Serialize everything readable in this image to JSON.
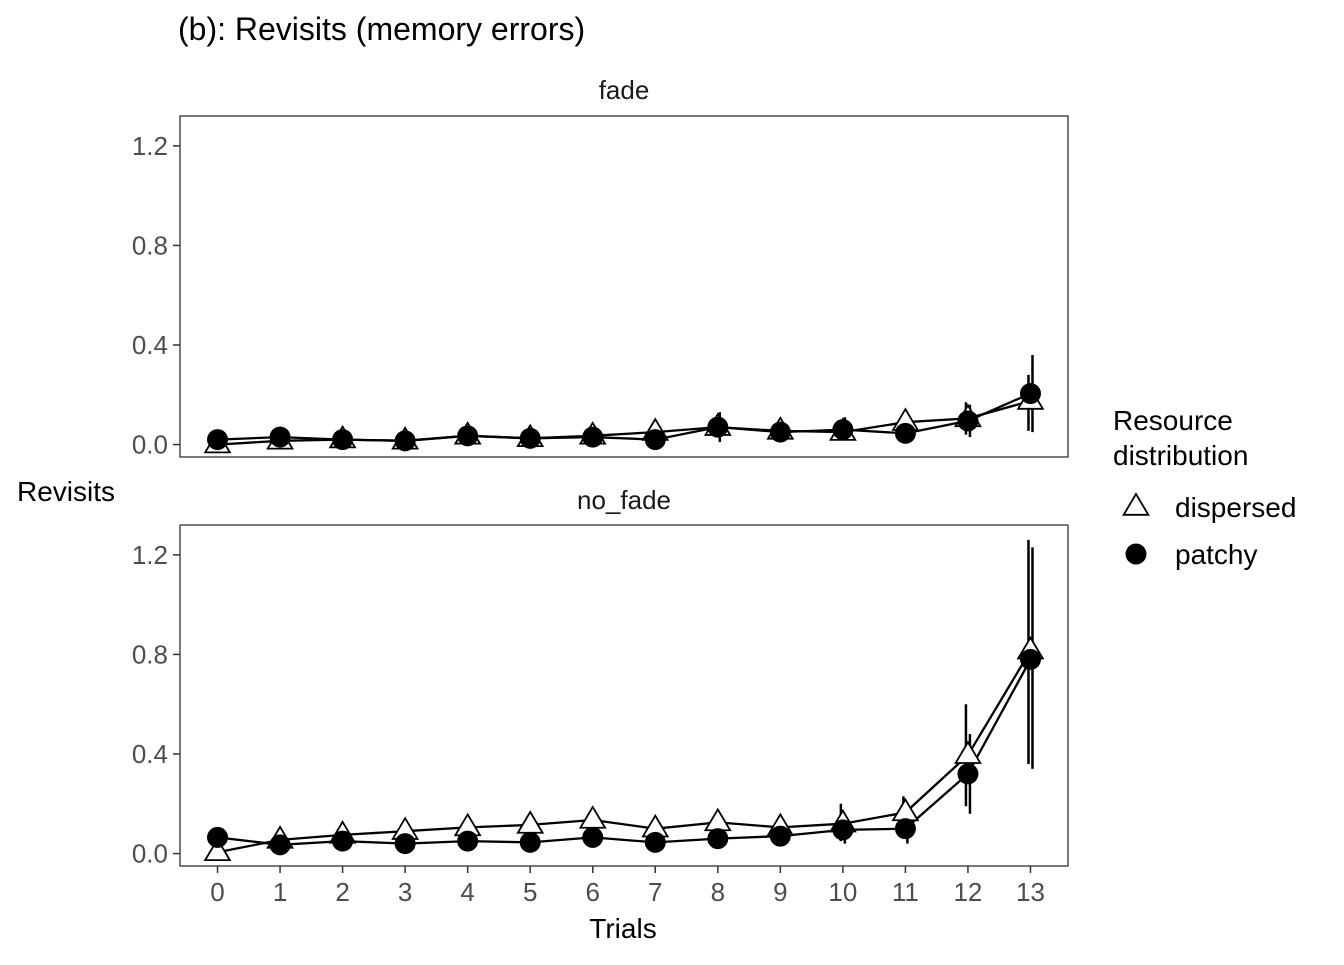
{
  "chart_data": {
    "type": "line",
    "title": "(b): Revisits (memory errors)",
    "xlabel": "Trials",
    "ylabel": "Revisits",
    "x": [
      0,
      1,
      2,
      3,
      4,
      5,
      6,
      7,
      8,
      9,
      10,
      11,
      12,
      13
    ],
    "x_ticks": [
      "0",
      "1",
      "2",
      "3",
      "4",
      "5",
      "6",
      "7",
      "8",
      "9",
      "10",
      "11",
      "12",
      "13"
    ],
    "ylim": [
      -0.05,
      1.32
    ],
    "y_ticks": [
      "0.0",
      "0.4",
      "0.8",
      "1.2"
    ],
    "grid": false,
    "legend": {
      "title_lines": [
        "Resource",
        "distribution"
      ],
      "position": "right",
      "entries": [
        {
          "label": "dispersed",
          "marker": "triangle-open"
        },
        {
          "label": "patchy",
          "marker": "circle-filled"
        }
      ]
    },
    "facets": [
      {
        "label": "fade",
        "series": [
          {
            "name": "dispersed",
            "marker": "triangle-open",
            "values": [
              0.0,
              0.015,
              0.02,
              0.015,
              0.035,
              0.025,
              0.035,
              0.05,
              0.07,
              0.055,
              0.05,
              0.09,
              0.105,
              0.175
            ],
            "err_lo": [
              null,
              null,
              null,
              null,
              null,
              null,
              null,
              null,
              null,
              null,
              0.03,
              null,
              0.04,
              0.055
            ],
            "err_hi": [
              null,
              0.03,
              null,
              null,
              null,
              null,
              null,
              null,
              null,
              null,
              0.09,
              null,
              0.17,
              0.28
            ]
          },
          {
            "name": "patchy",
            "marker": "circle-filled",
            "values": [
              0.02,
              0.03,
              0.02,
              0.015,
              0.035,
              0.025,
              0.03,
              0.02,
              0.07,
              0.05,
              0.06,
              0.045,
              0.095,
              0.205
            ],
            "err_lo": [
              null,
              null,
              null,
              null,
              null,
              null,
              null,
              null,
              0.01,
              null,
              0.03,
              null,
              0.03,
              0.05
            ],
            "err_hi": [
              null,
              null,
              null,
              null,
              null,
              null,
              null,
              null,
              0.13,
              null,
              0.11,
              null,
              0.16,
              0.36
            ]
          }
        ]
      },
      {
        "label": "no_fade",
        "series": [
          {
            "name": "dispersed",
            "marker": "triangle-open",
            "values": [
              0.005,
              0.055,
              0.075,
              0.09,
              0.105,
              0.115,
              0.135,
              0.1,
              0.125,
              0.105,
              0.12,
              0.165,
              0.395,
              0.815
            ],
            "err_lo": [
              null,
              null,
              null,
              null,
              null,
              null,
              null,
              null,
              null,
              null,
              0.05,
              0.11,
              0.19,
              0.36
            ],
            "err_hi": [
              null,
              null,
              null,
              null,
              null,
              null,
              null,
              null,
              null,
              null,
              0.2,
              0.23,
              0.6,
              1.26
            ]
          },
          {
            "name": "patchy",
            "marker": "circle-filled",
            "values": [
              0.065,
              0.035,
              0.05,
              0.04,
              0.05,
              0.045,
              0.065,
              0.045,
              0.06,
              0.07,
              0.095,
              0.1,
              0.32,
              0.78
            ],
            "err_lo": [
              null,
              null,
              null,
              null,
              null,
              null,
              null,
              null,
              null,
              null,
              0.04,
              0.04,
              0.16,
              0.34
            ],
            "err_hi": [
              null,
              null,
              null,
              null,
              null,
              null,
              null,
              null,
              null,
              null,
              0.14,
              0.14,
              0.48,
              1.23
            ]
          }
        ]
      }
    ]
  }
}
